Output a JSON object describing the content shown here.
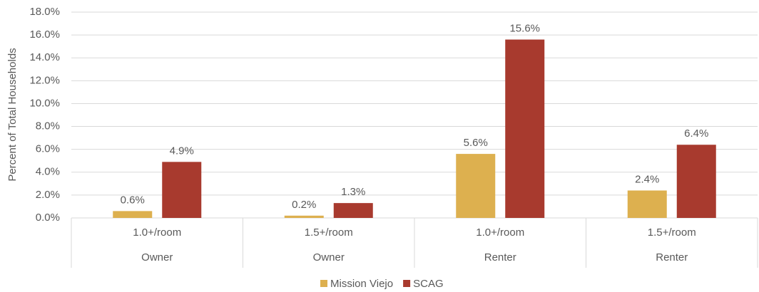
{
  "chart_data": {
    "type": "bar",
    "y_axis_label": "Percent of Total Households",
    "categories": [
      "1.0+/room",
      "1.5+/room",
      "1.0+/room",
      "1.5+/room"
    ],
    "category_groups": [
      "Owner",
      "Owner",
      "Renter",
      "Renter"
    ],
    "series": [
      {
        "name": "Mission Viejo",
        "color": "#ddb04f",
        "values": [
          0.6,
          0.2,
          5.6,
          2.4
        ],
        "value_labels": [
          "0.6%",
          "0.2%",
          "5.6%",
          "2.4%"
        ]
      },
      {
        "name": "SCAG",
        "color": "#a83a2e",
        "values": [
          4.9,
          1.3,
          15.6,
          6.4
        ],
        "value_labels": [
          "4.9%",
          "1.3%",
          "15.6%",
          "6.4%"
        ]
      }
    ],
    "ylim": [
      0,
      18
    ],
    "yticks": [
      {
        "value": 0,
        "label": "0.0%"
      },
      {
        "value": 2,
        "label": "2.0%"
      },
      {
        "value": 4,
        "label": "4.0%"
      },
      {
        "value": 6,
        "label": "6.0%"
      },
      {
        "value": 8,
        "label": "8.0%"
      },
      {
        "value": 10,
        "label": "10.0%"
      },
      {
        "value": 12,
        "label": "12.0%"
      },
      {
        "value": 14,
        "label": "14.0%"
      },
      {
        "value": 16,
        "label": "16.0%"
      },
      {
        "value": 18,
        "label": "18.0%"
      }
    ],
    "grid": true,
    "legend": "bottom"
  }
}
